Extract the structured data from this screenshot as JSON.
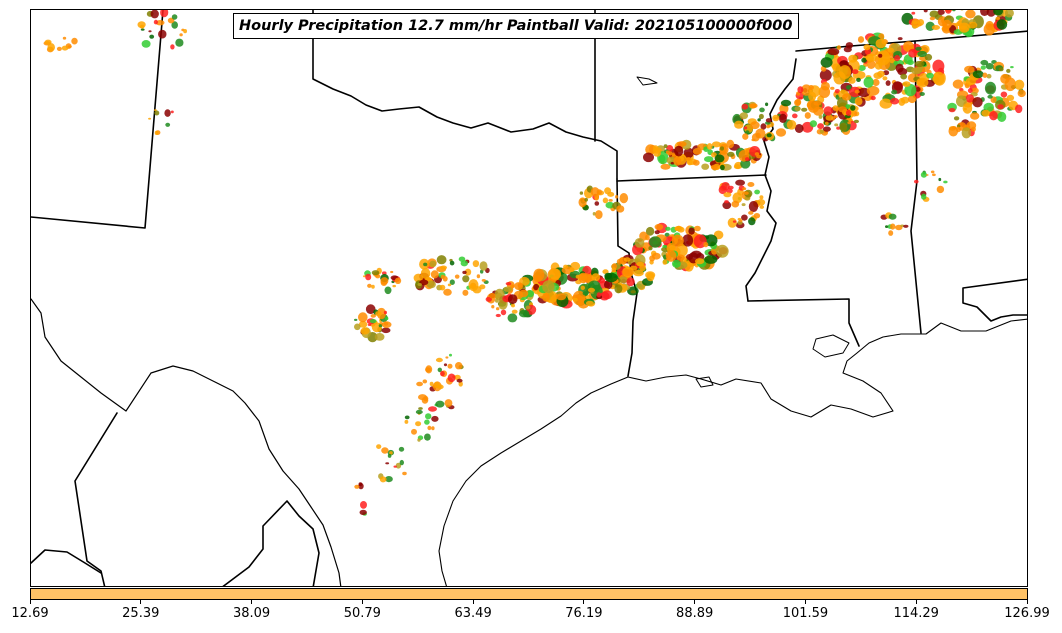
{
  "title": "Hourly Precipitation 12.7 mm/hr Paintball Valid: 202105100000f000",
  "colorbar": {
    "fill_color": "#FFC266",
    "ticks": [
      "12.69",
      "25.39",
      "38.09",
      "50.79",
      "63.49",
      "76.19",
      "88.89",
      "101.59",
      "114.29",
      "126.99"
    ]
  },
  "paintball_colors": [
    "#FF8C00",
    "#FFA500",
    "#FF2020",
    "#8B0000",
    "#1E8B1E",
    "#006400",
    "#32CD32",
    "#808000",
    "#B8A020"
  ],
  "boundary_color": "#000000"
}
